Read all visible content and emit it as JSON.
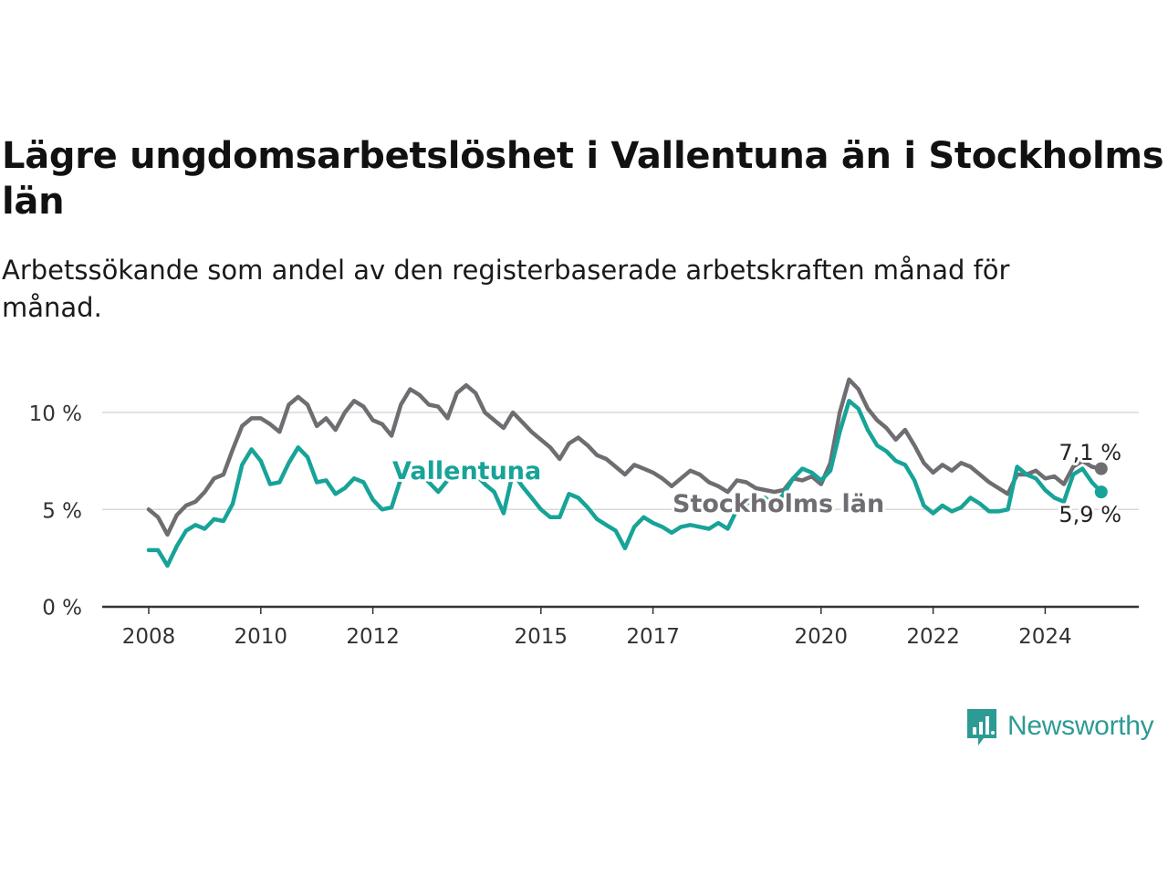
{
  "title": "Lägre ungdomsarbetslöshet i Vallentuna än i Stockholms län",
  "subtitle": "Arbetssökande som andel av den registerbaserade arbetskraften månad för månad.",
  "logo_text": "Newsworthy",
  "colors": {
    "vallentuna": "#17a398",
    "stockholm": "#6f6d71",
    "grid": "#d9d9d9",
    "axis": "#333333"
  },
  "chart_data": {
    "type": "line",
    "title": "Lägre ungdomsarbetslöshet i Vallentuna än i Stockholms län",
    "subtitle": "Arbetssökande som andel av den registerbaserade arbetskraften månad för månad.",
    "xlabel": "",
    "ylabel": "",
    "x_range": [
      "2008-01",
      "2025-09"
    ],
    "ylim": [
      0,
      12
    ],
    "yticks": [
      0,
      5,
      10
    ],
    "ytick_labels": [
      "0 %",
      "5 %",
      "10 %"
    ],
    "xticks": [
      "2008-01",
      "2010-01",
      "2012-01",
      "2015-01",
      "2017-01",
      "2020-01",
      "2022-01",
      "2024-01"
    ],
    "xtick_labels": [
      "2008",
      "2010",
      "2012",
      "2015",
      "2017",
      "2020",
      "2022",
      "2024"
    ],
    "grid": "horizontal",
    "series": [
      {
        "name": "Stockholms län",
        "end_label": "7,1 %",
        "data": [
          [
            "2008-01",
            5.0
          ],
          [
            "2008-03",
            4.6
          ],
          [
            "2008-05",
            3.7
          ],
          [
            "2008-07",
            4.7
          ],
          [
            "2008-09",
            5.2
          ],
          [
            "2008-11",
            5.4
          ],
          [
            "2009-01",
            5.9
          ],
          [
            "2009-03",
            6.6
          ],
          [
            "2009-05",
            6.8
          ],
          [
            "2009-07",
            8.1
          ],
          [
            "2009-09",
            9.3
          ],
          [
            "2009-11",
            9.7
          ],
          [
            "2010-01",
            9.7
          ],
          [
            "2010-03",
            9.4
          ],
          [
            "2010-05",
            9.0
          ],
          [
            "2010-07",
            10.4
          ],
          [
            "2010-09",
            10.8
          ],
          [
            "2010-11",
            10.4
          ],
          [
            "2011-01",
            9.3
          ],
          [
            "2011-03",
            9.7
          ],
          [
            "2011-05",
            9.1
          ],
          [
            "2011-07",
            10.0
          ],
          [
            "2011-09",
            10.6
          ],
          [
            "2011-11",
            10.3
          ],
          [
            "2012-01",
            9.6
          ],
          [
            "2012-03",
            9.4
          ],
          [
            "2012-05",
            8.8
          ],
          [
            "2012-07",
            10.4
          ],
          [
            "2012-09",
            11.2
          ],
          [
            "2012-11",
            10.9
          ],
          [
            "2013-01",
            10.4
          ],
          [
            "2013-03",
            10.3
          ],
          [
            "2013-05",
            9.7
          ],
          [
            "2013-07",
            11.0
          ],
          [
            "2013-09",
            11.4
          ],
          [
            "2013-11",
            11.0
          ],
          [
            "2014-01",
            10.0
          ],
          [
            "2014-03",
            9.6
          ],
          [
            "2014-05",
            9.2
          ],
          [
            "2014-07",
            10.0
          ],
          [
            "2014-09",
            9.5
          ],
          [
            "2014-11",
            9.0
          ],
          [
            "2015-01",
            8.6
          ],
          [
            "2015-03",
            8.2
          ],
          [
            "2015-05",
            7.6
          ],
          [
            "2015-07",
            8.4
          ],
          [
            "2015-09",
            8.7
          ],
          [
            "2015-11",
            8.3
          ],
          [
            "2016-01",
            7.8
          ],
          [
            "2016-03",
            7.6
          ],
          [
            "2016-05",
            7.2
          ],
          [
            "2016-07",
            6.8
          ],
          [
            "2016-09",
            7.3
          ],
          [
            "2016-11",
            7.1
          ],
          [
            "2017-01",
            6.9
          ],
          [
            "2017-03",
            6.6
          ],
          [
            "2017-05",
            6.2
          ],
          [
            "2017-07",
            6.6
          ],
          [
            "2017-09",
            7.0
          ],
          [
            "2017-11",
            6.8
          ],
          [
            "2018-01",
            6.4
          ],
          [
            "2018-03",
            6.2
          ],
          [
            "2018-05",
            5.9
          ],
          [
            "2018-07",
            6.5
          ],
          [
            "2018-09",
            6.4
          ],
          [
            "2018-11",
            6.1
          ],
          [
            "2019-01",
            6.0
          ],
          [
            "2019-03",
            5.9
          ],
          [
            "2019-05",
            6.0
          ],
          [
            "2019-07",
            6.6
          ],
          [
            "2019-09",
            6.5
          ],
          [
            "2019-11",
            6.7
          ],
          [
            "2020-01",
            6.3
          ],
          [
            "2020-03",
            7.4
          ],
          [
            "2020-05",
            10.0
          ],
          [
            "2020-07",
            11.7
          ],
          [
            "2020-09",
            11.2
          ],
          [
            "2020-11",
            10.2
          ],
          [
            "2021-01",
            9.6
          ],
          [
            "2021-03",
            9.2
          ],
          [
            "2021-05",
            8.6
          ],
          [
            "2021-07",
            9.1
          ],
          [
            "2021-09",
            8.3
          ],
          [
            "2021-11",
            7.4
          ],
          [
            "2022-01",
            6.9
          ],
          [
            "2022-03",
            7.3
          ],
          [
            "2022-05",
            7.0
          ],
          [
            "2022-07",
            7.4
          ],
          [
            "2022-09",
            7.2
          ],
          [
            "2022-11",
            6.8
          ],
          [
            "2023-01",
            6.4
          ],
          [
            "2023-03",
            6.1
          ],
          [
            "2023-05",
            5.8
          ],
          [
            "2023-07",
            6.8
          ],
          [
            "2023-09",
            6.8
          ],
          [
            "2023-11",
            7.0
          ],
          [
            "2024-01",
            6.6
          ],
          [
            "2024-03",
            6.7
          ],
          [
            "2024-05",
            6.3
          ],
          [
            "2024-07",
            7.2
          ],
          [
            "2024-09",
            7.5
          ],
          [
            "2024-11",
            7.2
          ],
          [
            "2025-01",
            7.1
          ]
        ]
      },
      {
        "name": "Vallentuna",
        "end_label": "5,9 %",
        "data": [
          [
            "2008-01",
            2.9
          ],
          [
            "2008-03",
            2.9
          ],
          [
            "2008-05",
            2.1
          ],
          [
            "2008-07",
            3.1
          ],
          [
            "2008-09",
            3.9
          ],
          [
            "2008-11",
            4.2
          ],
          [
            "2009-01",
            4.0
          ],
          [
            "2009-03",
            4.5
          ],
          [
            "2009-05",
            4.4
          ],
          [
            "2009-07",
            5.3
          ],
          [
            "2009-09",
            7.3
          ],
          [
            "2009-11",
            8.1
          ],
          [
            "2010-01",
            7.5
          ],
          [
            "2010-03",
            6.3
          ],
          [
            "2010-05",
            6.4
          ],
          [
            "2010-07",
            7.4
          ],
          [
            "2010-09",
            8.2
          ],
          [
            "2010-11",
            7.7
          ],
          [
            "2011-01",
            6.4
          ],
          [
            "2011-03",
            6.5
          ],
          [
            "2011-05",
            5.8
          ],
          [
            "2011-07",
            6.1
          ],
          [
            "2011-09",
            6.6
          ],
          [
            "2011-11",
            6.4
          ],
          [
            "2012-01",
            5.5
          ],
          [
            "2012-03",
            5.0
          ],
          [
            "2012-05",
            5.1
          ],
          [
            "2012-07",
            6.6
          ],
          [
            "2012-09",
            7.2
          ],
          [
            "2012-11",
            6.9
          ],
          [
            "2013-01",
            6.4
          ],
          [
            "2013-03",
            5.9
          ],
          [
            "2013-05",
            6.5
          ],
          [
            "2013-07",
            7.0
          ],
          [
            "2013-09",
            6.6
          ],
          [
            "2013-11",
            6.8
          ],
          [
            "2014-01",
            6.3
          ],
          [
            "2014-03",
            5.9
          ],
          [
            "2014-05",
            4.8
          ],
          [
            "2014-07",
            6.9
          ],
          [
            "2014-09",
            6.2
          ],
          [
            "2014-11",
            5.6
          ],
          [
            "2015-01",
            5.0
          ],
          [
            "2015-03",
            4.6
          ],
          [
            "2015-05",
            4.6
          ],
          [
            "2015-07",
            5.8
          ],
          [
            "2015-09",
            5.6
          ],
          [
            "2015-11",
            5.1
          ],
          [
            "2016-01",
            4.5
          ],
          [
            "2016-03",
            4.2
          ],
          [
            "2016-05",
            3.9
          ],
          [
            "2016-07",
            3.0
          ],
          [
            "2016-09",
            4.1
          ],
          [
            "2016-11",
            4.6
          ],
          [
            "2017-01",
            4.3
          ],
          [
            "2017-03",
            4.1
          ],
          [
            "2017-05",
            3.8
          ],
          [
            "2017-07",
            4.1
          ],
          [
            "2017-09",
            4.2
          ],
          [
            "2017-11",
            4.1
          ],
          [
            "2018-01",
            4.0
          ],
          [
            "2018-03",
            4.3
          ],
          [
            "2018-05",
            4.0
          ],
          [
            "2018-07",
            5.0
          ],
          [
            "2018-09",
            5.3
          ],
          [
            "2018-11",
            5.5
          ],
          [
            "2019-01",
            5.6
          ],
          [
            "2019-03",
            5.2
          ],
          [
            "2019-05",
            5.8
          ],
          [
            "2019-07",
            6.6
          ],
          [
            "2019-09",
            7.1
          ],
          [
            "2019-11",
            6.9
          ],
          [
            "2020-01",
            6.5
          ],
          [
            "2020-03",
            7.0
          ],
          [
            "2020-05",
            9.0
          ],
          [
            "2020-07",
            10.6
          ],
          [
            "2020-09",
            10.2
          ],
          [
            "2020-11",
            9.1
          ],
          [
            "2021-01",
            8.3
          ],
          [
            "2021-03",
            8.0
          ],
          [
            "2021-05",
            7.5
          ],
          [
            "2021-07",
            7.3
          ],
          [
            "2021-09",
            6.5
          ],
          [
            "2021-11",
            5.2
          ],
          [
            "2022-01",
            4.8
          ],
          [
            "2022-03",
            5.2
          ],
          [
            "2022-05",
            4.9
          ],
          [
            "2022-07",
            5.1
          ],
          [
            "2022-09",
            5.6
          ],
          [
            "2022-11",
            5.3
          ],
          [
            "2023-01",
            4.9
          ],
          [
            "2023-03",
            4.9
          ],
          [
            "2023-05",
            5.0
          ],
          [
            "2023-07",
            7.2
          ],
          [
            "2023-09",
            6.8
          ],
          [
            "2023-11",
            6.6
          ],
          [
            "2024-01",
            6.0
          ],
          [
            "2024-03",
            5.6
          ],
          [
            "2024-05",
            5.4
          ],
          [
            "2024-07",
            6.8
          ],
          [
            "2024-09",
            7.1
          ],
          [
            "2024-11",
            6.4
          ],
          [
            "2025-01",
            5.9
          ]
        ]
      }
    ]
  }
}
